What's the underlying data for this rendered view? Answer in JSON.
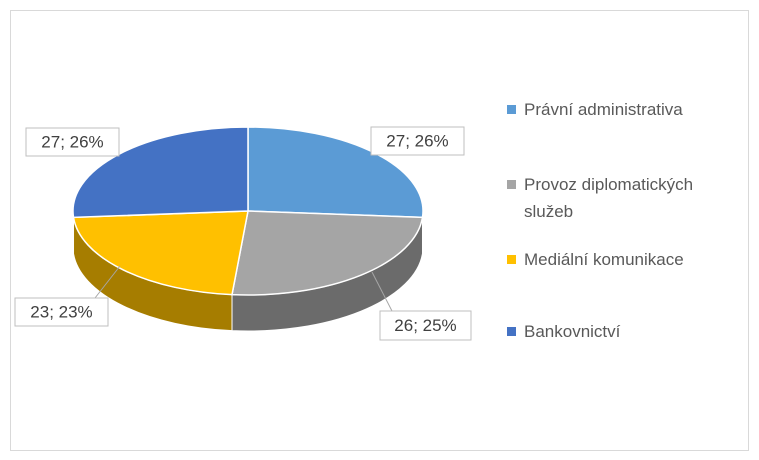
{
  "chart_data": {
    "type": "pie3d",
    "categories": [
      "Právní administrativa",
      "Provoz diplomatických služeb",
      "Mediální komunikace",
      "Bankovnictví"
    ],
    "values": [
      27,
      26,
      23,
      27
    ],
    "value_labels": [
      "27; 26%",
      "26; 25%",
      "23; 23%",
      "27; 26%"
    ],
    "colors": [
      "#5b9bd5",
      "#a5a5a5",
      "#ffc000",
      "#4472c4"
    ],
    "legend": "right"
  }
}
